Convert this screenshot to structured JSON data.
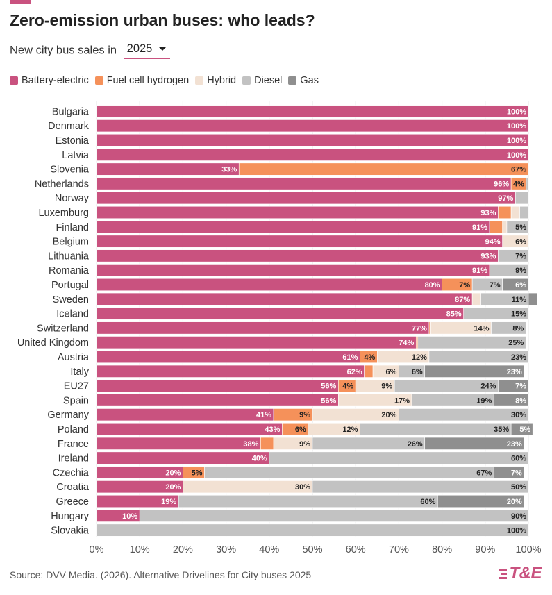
{
  "header": {
    "title": "Zero-emission urban buses: who leads?"
  },
  "filter": {
    "label": "New city bus sales in",
    "selected": "2025"
  },
  "legend": [
    {
      "label": "Battery-electric",
      "color": "#c9527f"
    },
    {
      "label": "Fuel cell hydrogen",
      "color": "#f5915a"
    },
    {
      "label": "Hybrid",
      "color": "#f2e1d3"
    },
    {
      "label": "Diesel",
      "color": "#c2c2c2"
    },
    {
      "label": "Gas",
      "color": "#8f8f8f"
    }
  ],
  "footer": {
    "source": "Source: DVV Media. (2026). Alternative Drivelines for City buses 2025",
    "logo": "T&E"
  },
  "chart_data": {
    "type": "bar",
    "orientation": "horizontal",
    "stacked": true,
    "xlim": [
      0,
      100
    ],
    "xticks": [
      "0%",
      "10%",
      "20%",
      "30%",
      "40%",
      "50%",
      "60%",
      "70%",
      "80%",
      "90%",
      "100%"
    ],
    "grid": true,
    "legend_position": "top-left",
    "categories": [
      "Bulgaria",
      "Denmark",
      "Estonia",
      "Latvia",
      "Slovenia",
      "Netherlands",
      "Norway",
      "Luxemburg",
      "Finland",
      "Belgium",
      "Lithuania",
      "Romania",
      "Portugal",
      "Sweden",
      "Iceland",
      "Switzerland",
      "United Kingdom",
      "Austria",
      "Italy",
      "EU27",
      "Spain",
      "Germany",
      "Poland",
      "France",
      "Ireland",
      "Czechia",
      "Croatia",
      "Greece",
      "Hungary",
      "Slovakia"
    ],
    "series": [
      {
        "name": "Battery-electric",
        "color": "#c9527f",
        "label_color": "#ffffff",
        "values": [
          100,
          100,
          100,
          100,
          33,
          96,
          97,
          93,
          91,
          94,
          93,
          91,
          80,
          87,
          85,
          77,
          74,
          61,
          62,
          56,
          56,
          41,
          43,
          38,
          40,
          20,
          20,
          19,
          10,
          0
        ]
      },
      {
        "name": "Fuel cell hydrogen",
        "color": "#f5915a",
        "label_color": "#222222",
        "values": [
          0,
          0,
          0,
          0,
          67,
          3.5,
          0,
          3,
          3,
          0,
          0,
          0,
          7,
          0,
          0,
          0.4,
          0.4,
          4,
          2,
          4,
          0,
          9,
          6,
          3,
          0,
          5,
          0,
          0,
          0,
          0
        ]
      },
      {
        "name": "Hybrid",
        "color": "#f2e1d3",
        "label_color": "#222222",
        "values": [
          0,
          0,
          0,
          0,
          0,
          0,
          0,
          2,
          1,
          6,
          0,
          0,
          0,
          2,
          0,
          14,
          0,
          12,
          6,
          9,
          17,
          20,
          12,
          9,
          0,
          0,
          30,
          0,
          0,
          0
        ]
      },
      {
        "name": "Diesel",
        "color": "#c2c2c2",
        "label_color": "#222222",
        "values": [
          0,
          0,
          0,
          0,
          0,
          0.5,
          3,
          2,
          5,
          0,
          7,
          9,
          7,
          11,
          15,
          8,
          25,
          23,
          6,
          24,
          19,
          30,
          35,
          26,
          60,
          67,
          50,
          60,
          90,
          100
        ]
      },
      {
        "name": "Gas",
        "color": "#8f8f8f",
        "label_color": "#ffffff",
        "values": [
          0,
          0,
          0,
          0,
          0,
          0,
          0,
          0,
          0,
          0,
          0,
          0,
          6,
          2,
          0,
          0,
          0,
          0,
          23,
          7,
          8,
          0,
          5,
          23,
          0,
          7,
          0,
          20,
          0,
          0
        ]
      }
    ],
    "data_labels": [
      [
        "100%",
        "",
        "",
        "",
        ""
      ],
      [
        "100%",
        "",
        "",
        "",
        ""
      ],
      [
        "100%",
        "",
        "",
        "",
        ""
      ],
      [
        "100%",
        "",
        "",
        "",
        ""
      ],
      [
        "33%",
        "67%",
        "",
        "",
        ""
      ],
      [
        "96%",
        "4%",
        "",
        "",
        ""
      ],
      [
        "97%",
        "",
        "",
        "",
        ""
      ],
      [
        "93%",
        "",
        "",
        "",
        ""
      ],
      [
        "91%",
        "",
        "",
        "5%",
        ""
      ],
      [
        "94%",
        "",
        "6%",
        "",
        ""
      ],
      [
        "93%",
        "",
        "",
        "7%",
        ""
      ],
      [
        "91%",
        "",
        "",
        "9%",
        ""
      ],
      [
        "80%",
        "7%",
        "",
        "7%",
        "6%"
      ],
      [
        "87%",
        "",
        "",
        "11%",
        ""
      ],
      [
        "85%",
        "",
        "",
        "15%",
        ""
      ],
      [
        "77%",
        "",
        "14%",
        "8%",
        ""
      ],
      [
        "74%",
        "",
        "",
        "25%",
        ""
      ],
      [
        "61%",
        "4%",
        "12%",
        "23%",
        ""
      ],
      [
        "62%",
        "",
        "6%",
        "6%",
        "23%"
      ],
      [
        "56%",
        "4%",
        "9%",
        "24%",
        "7%"
      ],
      [
        "56%",
        "",
        "17%",
        "19%",
        "8%"
      ],
      [
        "41%",
        "9%",
        "20%",
        "30%",
        ""
      ],
      [
        "43%",
        "6%",
        "12%",
        "35%",
        "5%"
      ],
      [
        "38%",
        "",
        "9%",
        "26%",
        "23%"
      ],
      [
        "40%",
        "",
        "",
        "60%",
        ""
      ],
      [
        "20%",
        "5%",
        "",
        "67%",
        "7%"
      ],
      [
        "20%",
        "",
        "30%",
        "50%",
        ""
      ],
      [
        "19%",
        "",
        "",
        "60%",
        "20%"
      ],
      [
        "10%",
        "",
        "",
        "90%",
        ""
      ],
      [
        "",
        "",
        "",
        "100%",
        ""
      ]
    ]
  }
}
